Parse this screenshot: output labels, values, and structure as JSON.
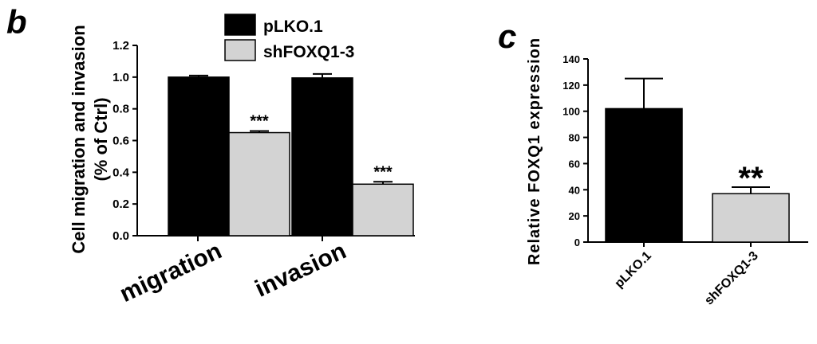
{
  "chart_data": [
    {
      "type": "bar",
      "panel_label": "b",
      "title": "",
      "ylabel": "Cell migration and invasion (% of Ctrl)",
      "ylabel_lines": [
        "Cell migration and invasion",
        "(% of Ctrl)"
      ],
      "xlabel": "",
      "ylim": [
        0,
        1.2
      ],
      "yticks": [
        "0.0",
        "0.2",
        "0.4",
        "0.6",
        "0.8",
        "1.0",
        "1.2"
      ],
      "categories": [
        "migration",
        "invasion"
      ],
      "series": [
        {
          "name": "pLKO.1",
          "color": "#000000",
          "values": [
            1.0,
            0.995
          ],
          "errors": [
            0.01,
            0.025
          ]
        },
        {
          "name": "shFOXQ1-3",
          "color": "#d3d3d3",
          "values": [
            0.65,
            0.325
          ],
          "errors": [
            0.01,
            0.015
          ]
        }
      ],
      "annotations": [
        {
          "category": 0,
          "series": 1,
          "text": "***"
        },
        {
          "category": 1,
          "series": 1,
          "text": "***"
        }
      ],
      "legend_position": "top"
    },
    {
      "type": "bar",
      "panel_label": "c",
      "title": "",
      "ylabel": "Relative FOXQ1 expression",
      "xlabel": "",
      "ylim": [
        0,
        140
      ],
      "yticks": [
        "0",
        "20",
        "40",
        "60",
        "80",
        "100",
        "120",
        "140"
      ],
      "categories": [
        "pLKO.1",
        "shFOXQ1-3"
      ],
      "values": [
        102,
        37
      ],
      "errors": [
        23,
        5
      ],
      "colors": [
        "#000000",
        "#d3d3d3"
      ],
      "annotations": [
        {
          "category": 1,
          "text": "**"
        }
      ]
    }
  ]
}
